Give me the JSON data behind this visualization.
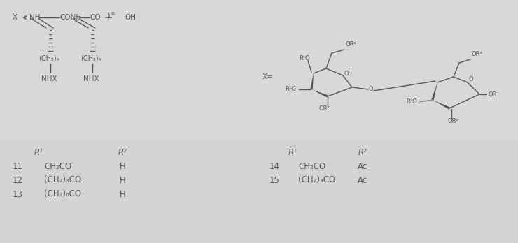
{
  "bg_color": "#d8d8d8",
  "fig_width": 7.4,
  "fig_height": 3.48,
  "dpi": 100,
  "text_color": "#555555",
  "line_color": "#555555",
  "font_size_label": 8.5,
  "font_size_small": 7.5,
  "table_left": {
    "rows": [
      {
        "num": "11",
        "r1": "CH₂CO",
        "r2": "H"
      },
      {
        "num": "12",
        "r1": "(CH₂)₃CO",
        "r2": "H"
      },
      {
        "num": "13",
        "r1": "(CH₂)₆CO",
        "r2": "H"
      }
    ]
  },
  "table_right": {
    "rows": [
      {
        "num": "14",
        "r1": "CH₂CO",
        "r2": "Ac"
      },
      {
        "num": "15",
        "r1": "(CH₂)₃CO",
        "r2": "Ac"
      }
    ]
  }
}
